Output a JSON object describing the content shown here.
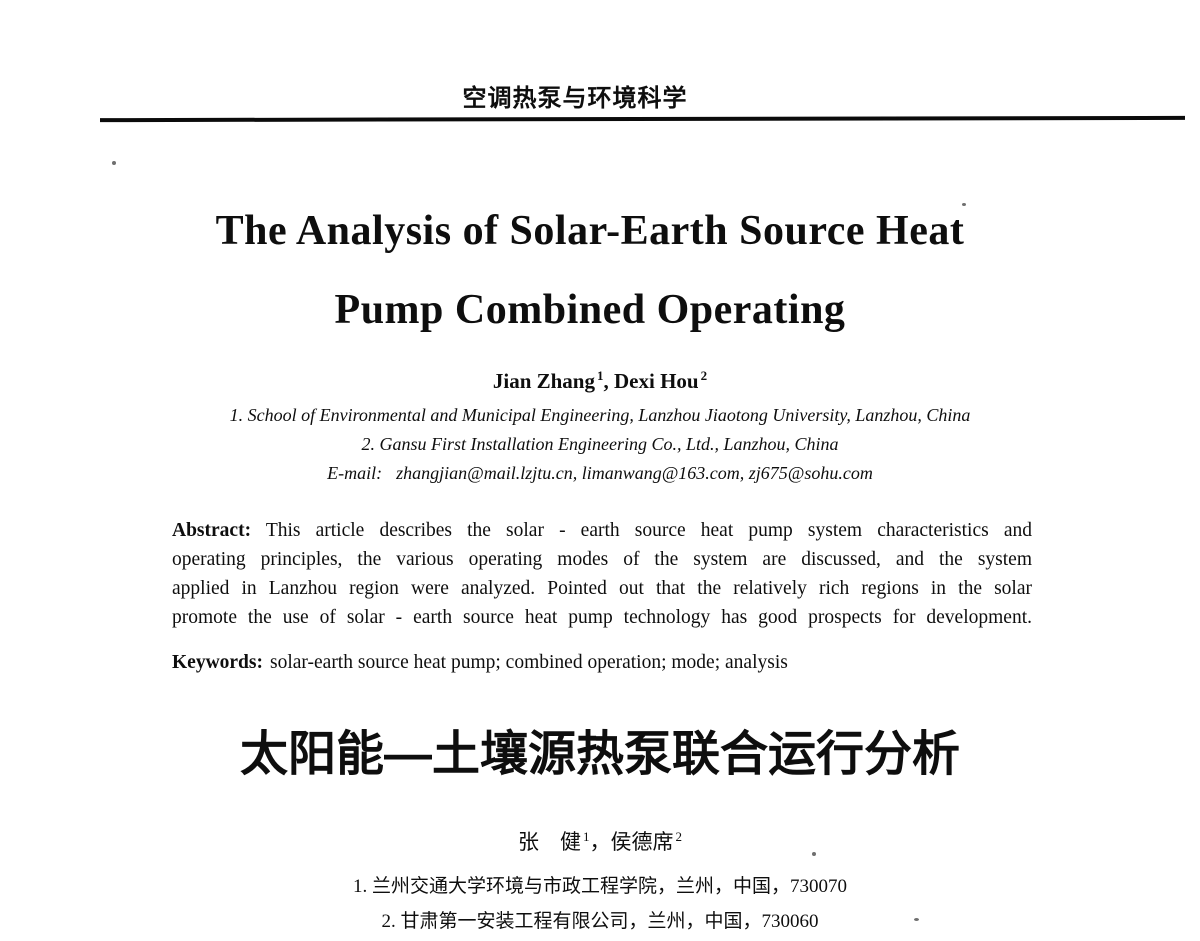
{
  "journal": {
    "header": "空调热泵与环境科学"
  },
  "title": {
    "line1": "The Analysis of Solar-Earth Source Heat",
    "line2": "Pump Combined Operating"
  },
  "authors": {
    "name1": "Jian Zhang",
    "sup1": "1",
    "sep": ", ",
    "name2": "Dexi Hou",
    "sup2": "2"
  },
  "affiliations": [
    "1. School of Environmental and Municipal Engineering, Lanzhou Jiaotong University, Lanzhou, China",
    "2. Gansu First Installation Engineering Co., Ltd., Lanzhou, China"
  ],
  "email": {
    "label": "E-mail:",
    "value": "zhangjian@mail.lzjtu.cn, limanwang@163.com, zj675@sohu.com"
  },
  "abstract": {
    "label": "Abstract:",
    "lines": [
      "This article describes the solar - earth source heat pump system characteristics and",
      "operating principles, the various operating modes of the system are discussed, and the system",
      "applied in Lanzhou region were analyzed. Pointed out that the relatively rich regions in the solar",
      "promote the use of solar - earth source heat pump technology has good prospects for development."
    ]
  },
  "keywords": {
    "label": "Keywords:",
    "value": "solar-earth source heat pump; combined operation; mode; analysis"
  },
  "chinese": {
    "title": "太阳能—土壤源热泵联合运行分析",
    "authors": {
      "name1": "张　健",
      "sup1": "1",
      "sep": "，",
      "name2": "侯德席",
      "sup2": "2"
    },
    "affiliations": [
      "1. 兰州交通大学环境与市政工程学院，兰州，中国，730070",
      "2. 甘肃第一安装工程有限公司，兰州，中国，730060"
    ]
  },
  "colors": {
    "ink": "#0e0e0e",
    "paper": "#ffffff"
  }
}
